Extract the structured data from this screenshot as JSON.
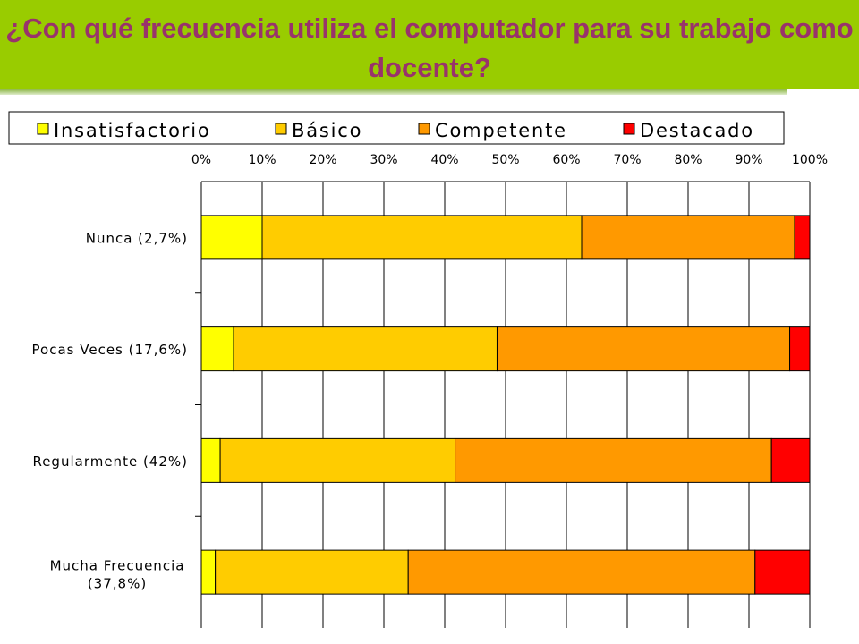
{
  "title": "¿Con qué frecuencia utiliza el computador para su trabajo como docente?",
  "colors": {
    "banner": "#99cc00",
    "title_text": "#99336b",
    "Insatisfactorio": "#ffff00",
    "Básico": "#ffcc00",
    "Competente": "#ff9900",
    "Destacado": "#ff0000"
  },
  "chart_data": {
    "type": "bar",
    "orientation": "horizontal",
    "stacked": true,
    "percent_stacked": true,
    "categories": [
      [
        "Nunca (2,7%)"
      ],
      [
        "Pocas Veces (17,6%)"
      ],
      [
        "Regularmente (42%)"
      ],
      [
        "Mucha Frecuencia",
        "(37,8%)"
      ]
    ],
    "series": [
      {
        "name": "Insatisfactorio",
        "values": [
          10,
          5.3,
          3.1,
          2.3
        ]
      },
      {
        "name": "Básico",
        "values": [
          52.5,
          43.3,
          38.6,
          31.7
        ]
      },
      {
        "name": "Competente",
        "values": [
          35,
          48.1,
          52.0,
          57.0
        ]
      },
      {
        "name": "Destacado",
        "values": [
          2.5,
          3.3,
          6.3,
          9.0
        ]
      }
    ],
    "xlim": [
      0,
      100
    ],
    "x_ticks": [
      "0%",
      "10%",
      "20%",
      "30%",
      "40%",
      "50%",
      "60%",
      "70%",
      "80%",
      "90%",
      "100%"
    ],
    "x_axis_position": "top",
    "legend_position": "top",
    "grid": true
  }
}
